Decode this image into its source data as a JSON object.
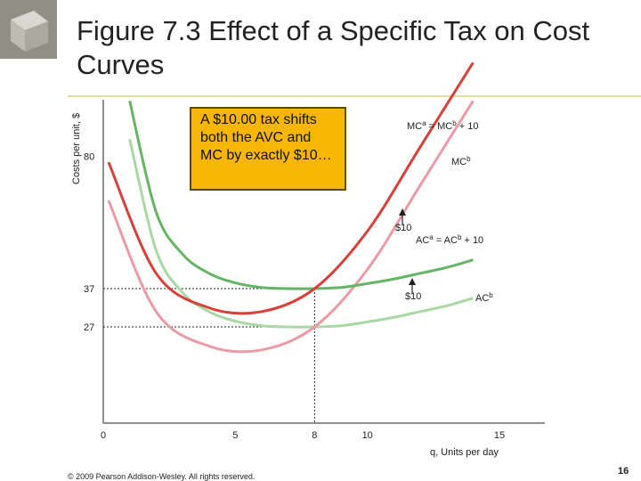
{
  "title": "Figure 7.3 Effect of a Specific Tax on Cost Curves",
  "callout": "A $10.00 tax shifts both the AVC and MC by exactly $10…",
  "footer": {
    "copyright": "© 2009 Pearson Addison-Wesley. All rights reserved.",
    "page_number": "16"
  },
  "colors": {
    "MCa": "#d8403a",
    "MCb": "#ec9aa6",
    "ACa": "#66b466",
    "ACb": "#a8d8a4",
    "callout_bg": "#f7b600"
  },
  "chart_data": {
    "type": "line",
    "xlabel": "q, Units per day",
    "ylabel": "Costs per unit, $",
    "xlim": [
      0,
      15
    ],
    "x_ticks": [
      "0",
      "5",
      "8",
      "10",
      "15"
    ],
    "y_ticks": [
      "27",
      "37",
      "80"
    ],
    "series": [
      {
        "key": "MCa",
        "label_main": "MC",
        "label_sup": "a",
        "label_rest": " = MC",
        "label_sup2": "b",
        "label_end": " + 10",
        "points": [
          [
            0.2,
            70
          ],
          [
            2,
            41
          ],
          [
            4,
            32
          ],
          [
            6,
            31
          ],
          [
            8,
            37
          ],
          [
            10,
            52
          ],
          [
            12,
            74
          ],
          [
            14,
            96
          ]
        ]
      },
      {
        "key": "MCb",
        "label_main": "MC",
        "label_sup": "b",
        "label_rest": "",
        "label_sup2": "",
        "label_end": "",
        "points": [
          [
            0.2,
            60
          ],
          [
            2,
            31
          ],
          [
            4,
            22
          ],
          [
            6,
            21
          ],
          [
            8,
            27
          ],
          [
            10,
            42
          ],
          [
            12,
            64
          ],
          [
            14,
            86
          ]
        ]
      },
      {
        "key": "ACa",
        "label_main": "AC",
        "label_sup": "a",
        "label_rest": " = AC",
        "label_sup2": "b",
        "label_end": " + 10",
        "points": [
          [
            1,
            86
          ],
          [
            2,
            57
          ],
          [
            3,
            46
          ],
          [
            4,
            41
          ],
          [
            5,
            38.5
          ],
          [
            6,
            37.3
          ],
          [
            7,
            37
          ],
          [
            8,
            37
          ],
          [
            9,
            37.3
          ],
          [
            10,
            38.3
          ],
          [
            11,
            39.5
          ],
          [
            12,
            41
          ],
          [
            13,
            42.5
          ],
          [
            14,
            44.5
          ]
        ]
      },
      {
        "key": "ACb",
        "label_main": "AC",
        "label_sup": "b",
        "label_rest": "",
        "label_sup2": "",
        "label_end": "",
        "points": [
          [
            1,
            76
          ],
          [
            2,
            47
          ],
          [
            3,
            36
          ],
          [
            4,
            31
          ],
          [
            5,
            28.5
          ],
          [
            6,
            27.3
          ],
          [
            7,
            27
          ],
          [
            8,
            27
          ],
          [
            9,
            27.3
          ],
          [
            10,
            28.3
          ],
          [
            11,
            29.5
          ],
          [
            12,
            31
          ],
          [
            13,
            32.5
          ],
          [
            14,
            34.5
          ]
        ]
      }
    ],
    "reference_lines": {
      "q": 8,
      "c_upper": 37,
      "c_lower": 27
    },
    "shift_annotations": [
      "$10",
      "$10"
    ]
  }
}
